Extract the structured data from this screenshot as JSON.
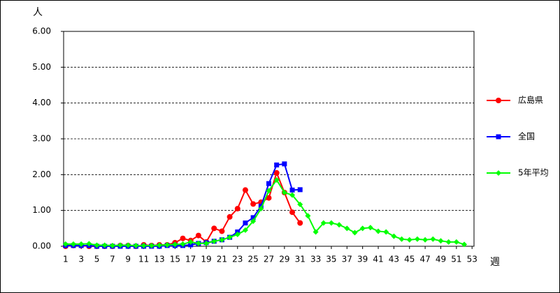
{
  "chart_data": {
    "type": "line",
    "y_unit": "人",
    "x_label": "週",
    "x": [
      1,
      2,
      3,
      4,
      5,
      6,
      7,
      8,
      9,
      10,
      11,
      12,
      13,
      14,
      15,
      16,
      17,
      18,
      19,
      20,
      21,
      22,
      23,
      24,
      25,
      26,
      27,
      28,
      29,
      30,
      31,
      32,
      33,
      34,
      35,
      36,
      37,
      38,
      39,
      40,
      41,
      42,
      43,
      44,
      45,
      46,
      47,
      48,
      49,
      50,
      51,
      52,
      53
    ],
    "xlim": [
      0.75,
      53.25
    ],
    "xticks": [
      1,
      3,
      5,
      7,
      9,
      11,
      13,
      15,
      17,
      19,
      21,
      23,
      25,
      27,
      29,
      31,
      33,
      35,
      37,
      39,
      41,
      43,
      45,
      47,
      49,
      51,
      53
    ],
    "ylim": [
      0,
      6
    ],
    "yticks": [
      {
        "value": 0,
        "label": "0.00"
      },
      {
        "value": 1,
        "label": "1.00"
      },
      {
        "value": 2,
        "label": "2.00"
      },
      {
        "value": 3,
        "label": "3.00"
      },
      {
        "value": 4,
        "label": "4.00"
      },
      {
        "value": 5,
        "label": "5.00"
      },
      {
        "value": 6,
        "label": "6.00"
      }
    ],
    "grid": true,
    "series": [
      {
        "name": "広島県",
        "color": "#ff0000",
        "marker": "circle",
        "values": [
          0,
          0.02,
          0.02,
          0,
          0,
          0,
          0,
          0.02,
          0.02,
          0,
          0.04,
          0.02,
          0.04,
          0.04,
          0.1,
          0.22,
          0.16,
          0.3,
          0.12,
          0.5,
          0.42,
          0.82,
          1.05,
          1.57,
          1.18,
          1.23,
          1.35,
          2.05,
          1.5,
          0.95,
          0.65,
          null,
          null,
          null,
          null,
          null,
          null,
          null,
          null,
          null,
          null,
          null,
          null,
          null,
          null,
          null,
          null,
          null,
          null,
          null,
          null,
          null,
          null
        ]
      },
      {
        "name": "全国",
        "color": "#0000ff",
        "marker": "square",
        "values": [
          0.02,
          0.02,
          0.02,
          0.02,
          0,
          0,
          0,
          0,
          0,
          0,
          0,
          0,
          0,
          0.02,
          0.02,
          0.02,
          0.04,
          0.08,
          0.1,
          0.14,
          0.18,
          0.25,
          0.4,
          0.65,
          0.8,
          1.12,
          1.75,
          2.27,
          2.3,
          1.57,
          1.58,
          null,
          null,
          null,
          null,
          null,
          null,
          null,
          null,
          null,
          null,
          null,
          null,
          null,
          null,
          null,
          null,
          null,
          null,
          null,
          null,
          null,
          null
        ]
      },
      {
        "name": "5年平均",
        "color": "#00ff00",
        "marker": "diamond",
        "values": [
          0.06,
          0.06,
          0.06,
          0.07,
          0.03,
          0.03,
          0.02,
          0.03,
          0.03,
          0.02,
          0.02,
          0.02,
          0.03,
          0.04,
          0.05,
          0.06,
          0.12,
          0.08,
          0.08,
          0.14,
          0.18,
          0.25,
          0.33,
          0.45,
          0.7,
          1.05,
          1.55,
          1.85,
          1.5,
          1.43,
          1.17,
          0.85,
          0.4,
          0.65,
          0.65,
          0.6,
          0.5,
          0.38,
          0.5,
          0.52,
          0.42,
          0.4,
          0.28,
          0.2,
          0.18,
          0.2,
          0.18,
          0.2,
          0.15,
          0.12,
          0.12,
          0.05,
          null
        ]
      }
    ]
  }
}
